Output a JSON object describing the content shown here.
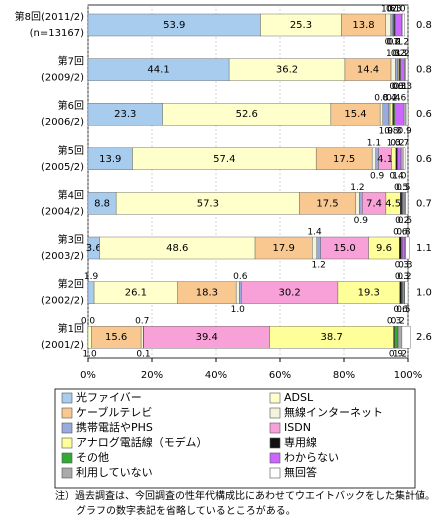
{
  "chart_data": {
    "type": "stacked-barh",
    "categories": [
      "第8回",
      "第7回",
      "第6回",
      "第5回",
      "第4回",
      "第3回",
      "第2回",
      "第1回"
    ],
    "periods": [
      "(2011/2)",
      "(2009/2)",
      "(2006/2)",
      "(2005/2)",
      "(2004/2)",
      "(2003/2)",
      "(2002/2)",
      "(2001/2)"
    ],
    "n_label": "(n=13167)",
    "xlim": [
      0,
      100
    ],
    "xticks": [
      {
        "value": 0,
        "label": "0%"
      },
      {
        "value": 20,
        "label": "20%"
      },
      {
        "value": 40,
        "label": "40%"
      },
      {
        "value": 60,
        "label": "60%"
      },
      {
        "value": 80,
        "label": "80%"
      },
      {
        "value": 100,
        "label": "100%"
      }
    ],
    "grid": true,
    "series": [
      {
        "name": "光ファイバー",
        "color": "#a8ccee",
        "values": [
          53.9,
          44.1,
          23.3,
          13.9,
          8.8,
          3.6,
          1.9,
          0.0
        ],
        "value_labels": [
          "53.9",
          "44.1",
          "23.3",
          "13.9",
          "8.8",
          "3.6",
          "1.9",
          "0.0"
        ]
      },
      {
        "name": "ADSL",
        "color": "#ffffcc",
        "values": [
          25.3,
          36.2,
          52.6,
          57.4,
          57.3,
          48.6,
          26.1,
          1.0
        ],
        "value_labels": [
          "25.3",
          "36.2",
          "52.6",
          "57.4",
          "57.3",
          "48.6",
          "26.1",
          "1.0"
        ]
      },
      {
        "name": "ケーブルテレビ",
        "color": "#f8c890",
        "values": [
          13.8,
          14.4,
          15.4,
          17.5,
          17.5,
          17.9,
          18.3,
          15.6
        ],
        "value_labels": [
          "13.8",
          "14.4",
          "15.4",
          "17.5",
          "17.5",
          "17.9",
          "18.3",
          "15.6"
        ]
      },
      {
        "name": "無線インターネット",
        "color": "#f4f4dc",
        "values": [
          1.6,
          1.3,
          0.8,
          1.1,
          1.2,
          1.4,
          1.0,
          0.7
        ],
        "value_labels": [
          "1.6",
          "1.3",
          "0.8",
          "1.1",
          "1.2",
          "1.4",
          "1.0",
          "0.7"
        ]
      },
      {
        "name": "携帯電話やPHS",
        "color": "#99aadd",
        "values": [
          0.7,
          0.8,
          1.9,
          0.9,
          0.9,
          1.2,
          0.6,
          0.1
        ],
        "value_labels": [
          "0.7",
          "0.8",
          "1.9",
          "0.9",
          "0.9",
          "1.2",
          "0.6",
          "0.1"
        ]
      },
      {
        "name": "ISDN",
        "color": "#f8a0d8",
        "values": [
          0.1,
          0.2,
          0.4,
          4.1,
          7.4,
          15.0,
          30.2,
          39.4
        ],
        "value_labels": [
          "0.1",
          "0.2",
          "0.4",
          "4.1",
          "7.4",
          "15.0",
          "30.2",
          "39.4"
        ]
      },
      {
        "name": "アナログ電話線（モデム）",
        "color": "#ffff99",
        "values": [
          0.2,
          0.3,
          0.8,
          1.3,
          4.5,
          9.6,
          19.3,
          38.7
        ],
        "value_labels": [
          "0.2",
          "0.3",
          "0.8",
          "1.3",
          "4.5",
          "9.6",
          "19.3",
          "38.7"
        ]
      },
      {
        "name": "専用線",
        "color": "#111111",
        "values": [
          0.3,
          0.3,
          0.4,
          0.4,
          0.5,
          0.6,
          0.6,
          0.3
        ],
        "value_labels": [
          "0.3",
          "0.3",
          "0.4",
          "0.4",
          "0.5",
          "0.6",
          "0.6",
          "0.3"
        ]
      },
      {
        "name": "その他",
        "color": "#33aa33",
        "values": [
          0.1,
          0.1,
          0.3,
          0.2,
          0.2,
          0.3,
          0.3,
          0.9
        ],
        "value_labels": [
          "0.1",
          "0.1",
          "0.3",
          "0.2",
          "0.2",
          "0.3",
          "0.3",
          "0.9"
        ]
      },
      {
        "name": "わからない",
        "color": "#cc66ff",
        "values": [
          2.0,
          1.2,
          2.6,
          1.0,
          0.5,
          0.8,
          0.5,
          0.2
        ],
        "value_labels": [
          "2.0",
          "1.2",
          "2.6",
          "1.0",
          "0.5",
          "0.8",
          "0.5",
          "0.2"
        ]
      },
      {
        "name": "利用していない",
        "color": "#aaaaaa",
        "values": [
          0.2,
          0.3,
          0.9,
          0.7,
          0.5,
          0.3,
          0.2,
          1.2
        ],
        "value_labels": [
          "0.2",
          "0.3",
          "0.9",
          "0.7",
          "0.5",
          "0.3",
          "0.2",
          "1.2"
        ]
      },
      {
        "name": "無回答",
        "color": "#ffffff",
        "values": [
          0.8,
          0.8,
          0.6,
          0.6,
          0.7,
          1.1,
          1.0,
          2.6
        ],
        "value_labels": [
          "0.8",
          "0.8",
          "0.6",
          "0.6",
          "0.7",
          "1.1",
          "1.0",
          "2.6"
        ]
      }
    ],
    "notes": [
      "注）過去調査は、今回調査の性年代構成比にあわせてウエイトバックをした集計値。",
      "グラフの数字表記を省略しているところがある。"
    ]
  }
}
